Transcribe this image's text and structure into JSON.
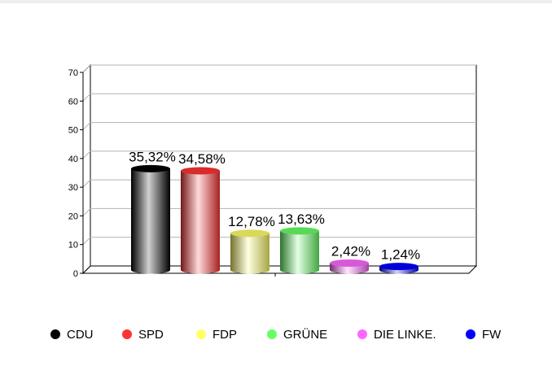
{
  "chart_data": {
    "type": "bar",
    "style": "3d-cylinder",
    "categories": [
      "CDU",
      "SPD",
      "FDP",
      "GRÜNE",
      "DIE LINKE.",
      "FW"
    ],
    "values": [
      35.32,
      34.58,
      12.78,
      13.63,
      2.42,
      1.24
    ],
    "data_labels": [
      "35,32%",
      "34,58%",
      "12,78%",
      "13,63%",
      "2,42%",
      "1,24%"
    ],
    "colors": [
      "#000000",
      "#ff3333",
      "#ffff66",
      "#66ff66",
      "#ff66ff",
      "#0000ff"
    ],
    "ylim": [
      0,
      70
    ],
    "yticks": [
      0,
      10,
      20,
      30,
      40,
      50,
      60,
      70
    ],
    "grid": true,
    "legend": "bottom"
  }
}
